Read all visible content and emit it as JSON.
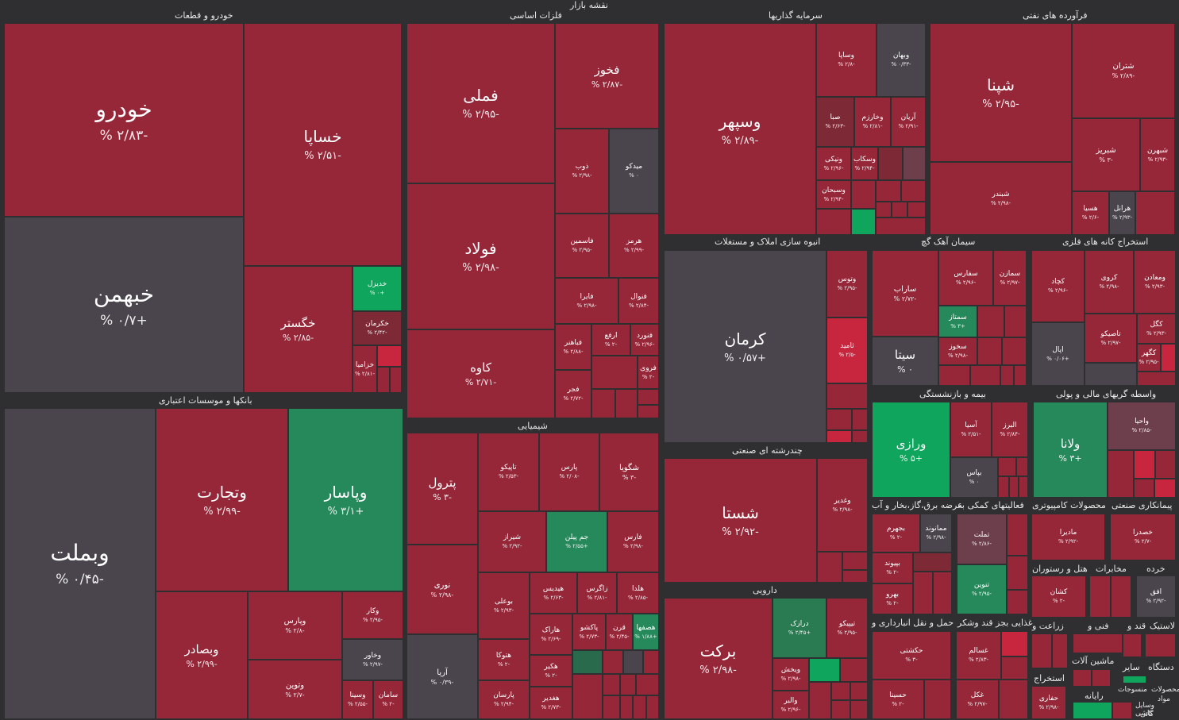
{
  "title": "نقشه بازار",
  "colors": {
    "red": "#962739",
    "darkred": "#7e2a36",
    "bright": "#c8253f",
    "gray": "#4a444d",
    "green": "#0fa55c",
    "dkgreen": "#2a8a5a",
    "mauve": "#6d3f4d",
    "bg": "#2f2f31"
  },
  "sectors": [
    {
      "name": "خودرو و قطعات"
    },
    {
      "name": "فلزات اساسی"
    },
    {
      "name": "سرمایه گذاریها"
    },
    {
      "name": "فرآورده های نفتی"
    },
    {
      "name": "بانکها و موسسات اعتباری"
    },
    {
      "name": "انبوه سازی املاک و مستغلات"
    },
    {
      "name": "سیمان آهک گچ"
    },
    {
      "name": "استخراج کانه های فلزی"
    },
    {
      "name": "شیمیایی"
    },
    {
      "name": "چندرشته ای صنعتی"
    },
    {
      "name": "بیمه و بازنشستگی"
    },
    {
      "name": "واسطه گریهای مالی و پولی"
    },
    {
      "name": "عرضه برق،گاز،بخار و آب"
    },
    {
      "name": "فعالیتهای کمکی به"
    },
    {
      "name": "محصولات کامپیوتری"
    },
    {
      "name": "پیمانکاری صنعتی"
    },
    {
      "name": "دارویی"
    },
    {
      "name": "هتل و رستوران"
    },
    {
      "name": "مخابرات"
    },
    {
      "name": "خرده"
    },
    {
      "name": "حمل و نقل انبارداری و"
    },
    {
      "name": "غذایی بجز قند وشکر"
    },
    {
      "name": "زراعت و"
    },
    {
      "name": "فنی و"
    },
    {
      "name": "قند و"
    },
    {
      "name": "لاستیک"
    },
    {
      "name": "ماشین آلات"
    },
    {
      "name": "استخراج"
    },
    {
      "name": "سایر"
    },
    {
      "name": "دستگاه"
    },
    {
      "name": "رایانه"
    },
    {
      "name": "محصولات"
    },
    {
      "name": "منسوجات"
    },
    {
      "name": "کاشی"
    },
    {
      "name": "وسایل"
    },
    {
      "name": "مواد"
    },
    {
      "name": "کانی"
    }
  ],
  "stocks": [
    {
      "name": "خودرو",
      "pct": "-۲/۸۳ %"
    },
    {
      "name": "خساپا",
      "pct": "-۲/۵۱ %"
    },
    {
      "name": "خبهمن",
      "pct": "+۰/۷ %"
    },
    {
      "name": "خگستر",
      "pct": "-۲/۸۵ %"
    },
    {
      "name": "خدیزل",
      "pct": "+۰ %"
    },
    {
      "name": "خکرمان",
      "pct": "-۲/۴۲ %"
    },
    {
      "name": "خزامیا",
      "pct": "-۲/۸۱ %"
    },
    {
      "name": "فملی",
      "pct": "-۲/۹۵ %"
    },
    {
      "name": "فخوز",
      "pct": "-۲/۸۷ %"
    },
    {
      "name": "فولاد",
      "pct": "-۲/۹۸ %"
    },
    {
      "name": "کاوه",
      "pct": "-۲/۷۱ %"
    },
    {
      "name": "ذوب",
      "pct": "-۲/۹۸ %"
    },
    {
      "name": "میدکو",
      "pct": "۰ %"
    },
    {
      "name": "فاسمین",
      "pct": "-۲/۹۵ %"
    },
    {
      "name": "هرمز",
      "pct": "-۲/۹۹ %"
    },
    {
      "name": "فایرا",
      "pct": "-۲/۹۸ %"
    },
    {
      "name": "فنوال",
      "pct": "-۲/۸۴ %"
    },
    {
      "name": "فباهنر",
      "pct": "-۲/۸۸ %"
    },
    {
      "name": "ارفع",
      "pct": "-۲ %"
    },
    {
      "name": "فنورد",
      "pct": "-۲/۹۶ %"
    },
    {
      "name": "فروی",
      "pct": "-۲ %"
    },
    {
      "name": "فجر",
      "pct": "-۲/۷۲ %"
    },
    {
      "name": "وسپهر",
      "pct": "-۲/۸۹ %"
    },
    {
      "name": "وساپا",
      "pct": "-۲/۸ %"
    },
    {
      "name": "وبهان",
      "pct": "-۰/۳۳ %"
    },
    {
      "name": "صبا",
      "pct": "-۲/۶۳ %"
    },
    {
      "name": "وخارزم",
      "pct": "-۲/۸۱ %"
    },
    {
      "name": "آریان",
      "pct": "-۲/۹۱ %"
    },
    {
      "name": "ونیکی",
      "pct": "-۲/۹۶ %"
    },
    {
      "name": "وسکاب",
      "pct": "-۲/۹۴ %"
    },
    {
      "name": "وسبحان",
      "pct": "-۲/۹۴ %"
    },
    {
      "name": "شپنا",
      "pct": "-۲/۹۵ %"
    },
    {
      "name": "شتران",
      "pct": "-۲/۸۹ %"
    },
    {
      "name": "شبریز",
      "pct": "-۳ %"
    },
    {
      "name": "شبهرن",
      "pct": "-۲/۹۳ %"
    },
    {
      "name": "شبندر",
      "pct": "-۲/۹۸ %"
    },
    {
      "name": "هسیا",
      "pct": "-۲/۶ %"
    },
    {
      "name": "هرانل",
      "pct": "-۲/۹۳ %"
    },
    {
      "name": "وبملت",
      "pct": "-۰/۴۵ %"
    },
    {
      "name": "وتجارت",
      "pct": "-۲/۹۹ %"
    },
    {
      "name": "وپاسار",
      "pct": "+۳/۱ %"
    },
    {
      "name": "وبصادر",
      "pct": "-۲/۹۹ %"
    },
    {
      "name": "وپارس",
      "pct": "-۲/۸ %"
    },
    {
      "name": "وکار",
      "pct": "-۲/۹۵ %"
    },
    {
      "name": "وخاور",
      "pct": "-۲/۹۷ %"
    },
    {
      "name": "وتوین",
      "pct": "-۲/۷ %"
    },
    {
      "name": "وسینا",
      "pct": "-۲/۵۵ %"
    },
    {
      "name": "سامان",
      "pct": "-۲ %"
    },
    {
      "name": "کرمان",
      "pct": "+۰/۵۷ %"
    },
    {
      "name": "وتوس",
      "pct": "-۲/۹۵ %"
    },
    {
      "name": "ثامید",
      "pct": "-۲/۵ %"
    },
    {
      "name": "ساراب",
      "pct": "-۲/۷۲ %"
    },
    {
      "name": "سفارس",
      "pct": "-۲/۹۶ %"
    },
    {
      "name": "سمازن",
      "pct": "-۲/۹۷ %"
    },
    {
      "name": "سمتاز",
      "pct": "+۳ %"
    },
    {
      "name": "سیتا",
      "pct": "۰ %"
    },
    {
      "name": "سخوز",
      "pct": "-۲/۹۸ %"
    },
    {
      "name": "کچاد",
      "pct": "-۲/۹۶ %"
    },
    {
      "name": "کروی",
      "pct": "-۲/۹۸ %"
    },
    {
      "name": "ومعادن",
      "pct": "-۲/۹۳ %"
    },
    {
      "name": "کگل",
      "pct": "-۲/۹۳ %"
    },
    {
      "name": "تاصیکو",
      "pct": "-۲/۹۷ %"
    },
    {
      "name": "اپال",
      "pct": "+۰/۰۶ %"
    },
    {
      "name": "کگهر",
      "pct": "-۲/۹۵ %"
    },
    {
      "name": "پترول",
      "pct": "-۳ %"
    },
    {
      "name": "تاپیکو",
      "pct": "-۲/۵۳ %"
    },
    {
      "name": "پارس",
      "pct": "-۲/۰۸ %"
    },
    {
      "name": "شگویا",
      "pct": "-۳ %"
    },
    {
      "name": "شیراز",
      "pct": "-۲/۹۲ %"
    },
    {
      "name": "جم پیلن",
      "pct": "+۲/۵۵ %"
    },
    {
      "name": "فارس",
      "pct": "-۲/۹۸ %"
    },
    {
      "name": "نوری",
      "pct": "-۲/۹۸ %"
    },
    {
      "name": "بوعلی",
      "pct": "-۲/۹۳ %"
    },
    {
      "name": "هیدیس",
      "pct": "-۲/۶۳ %"
    },
    {
      "name": "زاگرس",
      "pct": "-۲/۸۱ %"
    },
    {
      "name": "هلدا",
      "pct": "-۲/۸۵ %"
    },
    {
      "name": "هاراک",
      "pct": "-۲/۶۹ %"
    },
    {
      "name": "پاکشو",
      "pct": "-۲/۷۳ %"
    },
    {
      "name": "قرن",
      "pct": "-۲/۴۵ %"
    },
    {
      "name": "هصفها",
      "pct": "+۱/۸۸ %"
    },
    {
      "name": "هتوکا",
      "pct": "-۲ %"
    },
    {
      "name": "هکیر",
      "pct": "-۲ %"
    },
    {
      "name": "آریا",
      "pct": "-۰/۳۹ %"
    },
    {
      "name": "پارسان",
      "pct": "-۲/۹۴ %"
    },
    {
      "name": "هغدیر",
      "pct": "-۲/۷۳ %"
    },
    {
      "name": "شستا",
      "pct": "-۲/۹۲ %"
    },
    {
      "name": "وغدیر",
      "pct": "-۲/۹۸ %"
    },
    {
      "name": "ورازی",
      "pct": "+۵ %"
    },
    {
      "name": "آسیا",
      "pct": "-۲/۵۱ %"
    },
    {
      "name": "البرز",
      "pct": "-۲/۸۴ %"
    },
    {
      "name": "بپاس",
      "pct": "۰ %"
    },
    {
      "name": "ولانا",
      "pct": "+۳ %"
    },
    {
      "name": "واحیا",
      "pct": "-۲/۸۵ %"
    },
    {
      "name": "بجهرم",
      "pct": "-۲ %"
    },
    {
      "name": "ممانوند",
      "pct": "-۲/۹۸ %"
    },
    {
      "name": "بپیوند",
      "pct": "-۲ %"
    },
    {
      "name": "بهرو",
      "pct": "-۲ %"
    },
    {
      "name": "تملت",
      "pct": "-۲/۸۶ %"
    },
    {
      "name": "تنوین",
      "pct": "-۲/۹۵ %"
    },
    {
      "name": "مادیرا",
      "pct": "-۲/۹۲ %"
    },
    {
      "name": "خصدرا",
      "pct": "-۲/۷ %"
    },
    {
      "name": "برکت",
      "pct": "-۲/۹۸ %"
    },
    {
      "name": "درازک",
      "pct": "+۲/۴۵ %"
    },
    {
      "name": "تیپیکو",
      "pct": "-۲/۹۵ %"
    },
    {
      "name": "ویخش",
      "pct": "-۲/۹۸ %"
    },
    {
      "name": "والبر",
      "pct": "-۲/۹۶ %"
    },
    {
      "name": "کشان",
      "pct": "-۲ %"
    },
    {
      "name": "افق",
      "pct": "-۲/۹۲ %"
    },
    {
      "name": "حکشتی",
      "pct": "-۳ %"
    },
    {
      "name": "حسینا",
      "pct": "-۲ %"
    },
    {
      "name": "غسالم",
      "pct": "-۲/۸۳ %"
    },
    {
      "name": "غکل",
      "pct": "-۲/۹۷ %"
    },
    {
      "name": "حفاری",
      "pct": "-۲/۹۸ %"
    }
  ]
}
